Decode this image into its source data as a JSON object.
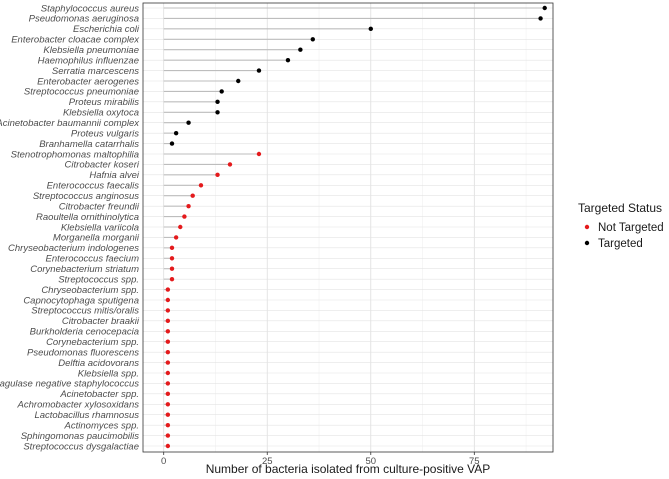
{
  "chart_data": {
    "type": "lollipop",
    "title": "",
    "xlabel": "Number of bacteria isolated from culture-positive VAP",
    "ylabel": "",
    "xlim": [
      -5,
      94
    ],
    "xticks": [
      0,
      25,
      50,
      75
    ],
    "grid": true,
    "legend": {
      "title": "Targeted Status",
      "placement": "right",
      "entries": [
        {
          "name": "Not Targeted",
          "color": "#e41a1c"
        },
        {
          "name": "Targeted",
          "color": "#000000"
        }
      ]
    },
    "stem_color": "#bdbdbd",
    "points": [
      {
        "label": "Staphylococcus aureus",
        "value": 92,
        "status": "Targeted"
      },
      {
        "label": "Pseudomonas aeruginosa",
        "value": 91,
        "status": "Targeted"
      },
      {
        "label": "Escherichia coli",
        "value": 50,
        "status": "Targeted"
      },
      {
        "label": "Enterobacter cloacae complex",
        "value": 36,
        "status": "Targeted"
      },
      {
        "label": "Klebsiella pneumoniae",
        "value": 33,
        "status": "Targeted"
      },
      {
        "label": "Haemophilus influenzae",
        "value": 30,
        "status": "Targeted"
      },
      {
        "label": "Serratia marcescens",
        "value": 23,
        "status": "Targeted"
      },
      {
        "label": "Enterobacter aerogenes",
        "value": 18,
        "status": "Targeted"
      },
      {
        "label": "Streptococcus pneumoniae",
        "value": 14,
        "status": "Targeted"
      },
      {
        "label": "Proteus mirabilis",
        "value": 13,
        "status": "Targeted"
      },
      {
        "label": "Klebsiella oxytoca",
        "value": 13,
        "status": "Targeted"
      },
      {
        "label": "Acinetobacter baumannii complex",
        "value": 6,
        "status": "Targeted"
      },
      {
        "label": "Proteus vulgaris",
        "value": 3,
        "status": "Targeted"
      },
      {
        "label": "Branhamella catarrhalis",
        "value": 2,
        "status": "Targeted"
      },
      {
        "label": "Stenotrophomonas maltophilia",
        "value": 23,
        "status": "Not Targeted"
      },
      {
        "label": "Citrobacter koseri",
        "value": 16,
        "status": "Not Targeted"
      },
      {
        "label": "Hafnia alvei",
        "value": 13,
        "status": "Not Targeted"
      },
      {
        "label": "Enterococcus faecalis",
        "value": 9,
        "status": "Not Targeted"
      },
      {
        "label": "Streptococcus anginosus",
        "value": 7,
        "status": "Not Targeted"
      },
      {
        "label": "Citrobacter freundii",
        "value": 6,
        "status": "Not Targeted"
      },
      {
        "label": "Raoultella ornithinolytica",
        "value": 5,
        "status": "Not Targeted"
      },
      {
        "label": "Klebsiella variicola",
        "value": 4,
        "status": "Not Targeted"
      },
      {
        "label": "Morganella morganii",
        "value": 3,
        "status": "Not Targeted"
      },
      {
        "label": "Chryseobacterium indologenes",
        "value": 2,
        "status": "Not Targeted"
      },
      {
        "label": "Enterococcus faecium",
        "value": 2,
        "status": "Not Targeted"
      },
      {
        "label": "Corynebacterium striatum",
        "value": 2,
        "status": "Not Targeted"
      },
      {
        "label": "Streptococcus spp.",
        "value": 2,
        "status": "Not Targeted"
      },
      {
        "label": "Chryseobacterium spp.",
        "value": 1,
        "status": "Not Targeted"
      },
      {
        "label": "Capnocytophaga sputigena",
        "value": 1,
        "status": "Not Targeted"
      },
      {
        "label": "Streptococcus mitis/oralis",
        "value": 1,
        "status": "Not Targeted"
      },
      {
        "label": "Citrobacter braakii",
        "value": 1,
        "status": "Not Targeted"
      },
      {
        "label": "Burkholderia cenocepacia",
        "value": 1,
        "status": "Not Targeted"
      },
      {
        "label": "Corynebacterium spp.",
        "value": 1,
        "status": "Not Targeted"
      },
      {
        "label": "Pseudomonas fluorescens",
        "value": 1,
        "status": "Not Targeted"
      },
      {
        "label": "Delftia acidovorans",
        "value": 1,
        "status": "Not Targeted"
      },
      {
        "label": "Klebsiella spp.",
        "value": 1,
        "status": "Not Targeted"
      },
      {
        "label": "Coagulase negative staphylococcus",
        "value": 1,
        "status": "Not Targeted"
      },
      {
        "label": "Acinetobacter spp.",
        "value": 1,
        "status": "Not Targeted"
      },
      {
        "label": "Achromobacter xylosoxidans",
        "value": 1,
        "status": "Not Targeted"
      },
      {
        "label": "Lactobacillus rhamnosus",
        "value": 1,
        "status": "Not Targeted"
      },
      {
        "label": "Actinomyces spp.",
        "value": 1,
        "status": "Not Targeted"
      },
      {
        "label": "Sphingomonas paucimobilis",
        "value": 1,
        "status": "Not Targeted"
      },
      {
        "label": "Streptococcus dysgalactiae",
        "value": 1,
        "status": "Not Targeted"
      }
    ]
  }
}
